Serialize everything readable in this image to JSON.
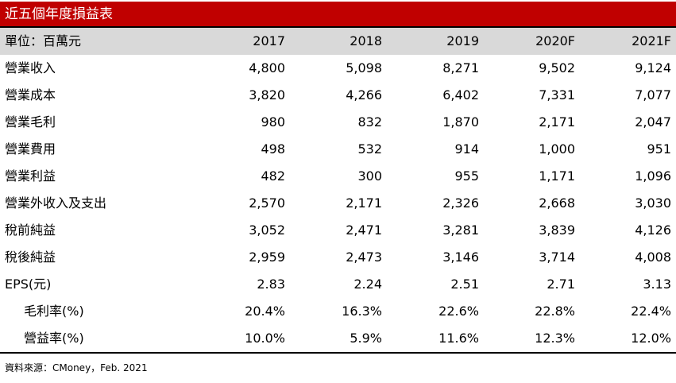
{
  "title": "近五個年度損益表",
  "header": {
    "unit_label": "單位：百萬元",
    "years": [
      "2017",
      "2018",
      "2019",
      "2020F",
      "2021F"
    ]
  },
  "rows": [
    {
      "label": "營業收入",
      "values": [
        "4,800",
        "5,098",
        "8,271",
        "9,502",
        "9,124"
      ]
    },
    {
      "label": "營業成本",
      "values": [
        "3,820",
        "4,266",
        "6,402",
        "7,331",
        "7,077"
      ]
    },
    {
      "label": "營業毛利",
      "values": [
        "980",
        "832",
        "1,870",
        "2,171",
        "2,047"
      ]
    },
    {
      "label": "營業費用",
      "values": [
        "498",
        "532",
        "914",
        "1,000",
        "951"
      ]
    },
    {
      "label": "營業利益",
      "values": [
        "482",
        "300",
        "955",
        "1,171",
        "1,096"
      ]
    },
    {
      "label": "營業外收入及支出",
      "values": [
        "2,570",
        "2,171",
        "2,326",
        "2,668",
        "3,030"
      ]
    },
    {
      "label": "稅前純益",
      "values": [
        "3,052",
        "2,471",
        "3,281",
        "3,839",
        "4,126"
      ]
    },
    {
      "label": "稅後純益",
      "values": [
        "2,959",
        "2,473",
        "3,146",
        "3,714",
        "4,008"
      ]
    },
    {
      "label": "EPS(元)",
      "values": [
        "2.83",
        "2.24",
        "2.51",
        "2.71",
        "3.13"
      ]
    },
    {
      "label": "毛利率(%)",
      "values": [
        "20.4%",
        "16.3%",
        "22.6%",
        "22.8%",
        "22.4%"
      ]
    },
    {
      "label": "營益率(%)",
      "values": [
        "10.0%",
        "5.9%",
        "11.6%",
        "12.3%",
        "12.0%"
      ]
    }
  ],
  "source": "資料來源：CMoney，Feb. 2021",
  "colors": {
    "title_background": "#c00000",
    "header_background": "#d9d9d9"
  }
}
